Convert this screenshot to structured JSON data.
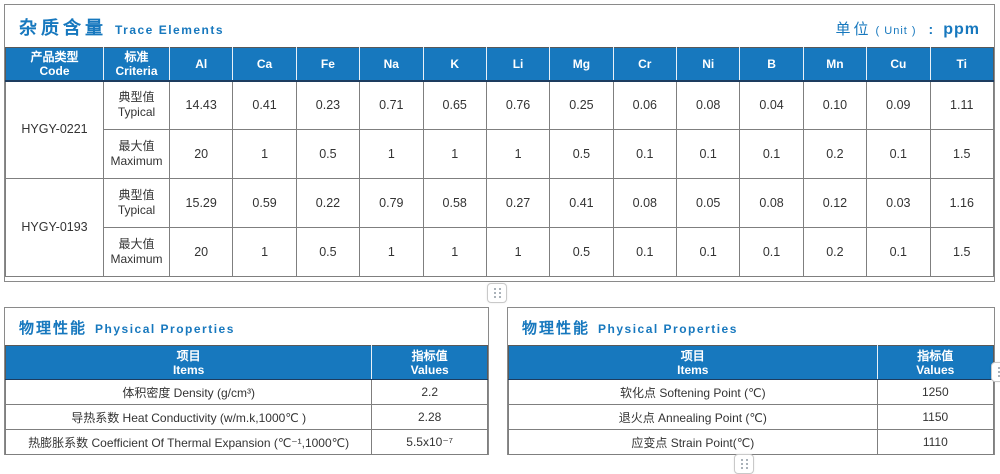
{
  "colors": {
    "accent_blue": "#1778be",
    "header_underline": "#1d3c5f",
    "grid_gray": "#7f7f7f"
  },
  "trace": {
    "title_zh": "杂质含量",
    "title_en": "Trace Elements",
    "unit_zh": "单位",
    "unit_paren": "( Unit )",
    "unit_colon": ":",
    "unit_value": "ppm",
    "col_code_zh": "产品类型",
    "col_code_en": "Code",
    "col_criteria_zh": "标准",
    "col_criteria_en": "Criteria",
    "elements": [
      "Al",
      "Ca",
      "Fe",
      "Na",
      "K",
      "Li",
      "Mg",
      "Cr",
      "Ni",
      "B",
      "Mn",
      "Cu",
      "Ti"
    ],
    "groups": [
      {
        "code": "HYGY-0221",
        "rows": [
          {
            "label_zh": "典型值",
            "label_en": "Typical",
            "values": [
              "14.43",
              "0.41",
              "0.23",
              "0.71",
              "0.65",
              "0.76",
              "0.25",
              "0.06",
              "0.08",
              "0.04",
              "0.10",
              "0.09",
              "1.11"
            ]
          },
          {
            "label_zh": "最大值",
            "label_en": "Maximum",
            "values": [
              "20",
              "1",
              "0.5",
              "1",
              "1",
              "1",
              "0.5",
              "0.1",
              "0.1",
              "0.1",
              "0.2",
              "0.1",
              "1.5"
            ]
          }
        ]
      },
      {
        "code": "HYGY-0193",
        "rows": [
          {
            "label_zh": "典型值",
            "label_en": "Typical",
            "values": [
              "15.29",
              "0.59",
              "0.22",
              "0.79",
              "0.58",
              "0.27",
              "0.41",
              "0.08",
              "0.05",
              "0.08",
              "0.12",
              "0.03",
              "1.16"
            ]
          },
          {
            "label_zh": "最大值",
            "label_en": "Maximum",
            "values": [
              "20",
              "1",
              "0.5",
              "1",
              "1",
              "1",
              "0.5",
              "0.1",
              "0.1",
              "0.1",
              "0.2",
              "0.1",
              "1.5"
            ]
          }
        ]
      }
    ]
  },
  "physical_left": {
    "title_zh": "物理性能",
    "title_en": "Physical Properties",
    "col_items_zh": "项目",
    "col_items_en": "Items",
    "col_values_zh": "指标值",
    "col_values_en": "Values",
    "rows": [
      {
        "item": "体积密度 Density (g/cm³)",
        "value": "2.2"
      },
      {
        "item": "导热系数 Heat Conductivity (w/m.k,1000℃ )",
        "value": "2.28"
      },
      {
        "item": "热膨胀系数 Coefficient Of Thermal Expansion (℃⁻¹,1000℃)",
        "value": "5.5x10⁻⁷"
      }
    ]
  },
  "physical_right": {
    "title_zh": "物理性能",
    "title_en": "Physical Properties",
    "col_items_zh": "项目",
    "col_items_en": "Items",
    "col_values_zh": "指标值",
    "col_values_en": "Values",
    "rows": [
      {
        "item": "软化点 Softening Point (℃)",
        "value": "1250"
      },
      {
        "item": "退火点 Annealing Point (℃)",
        "value": "1150"
      },
      {
        "item": "应变点 Strain Point(℃)",
        "value": "1110"
      }
    ]
  }
}
